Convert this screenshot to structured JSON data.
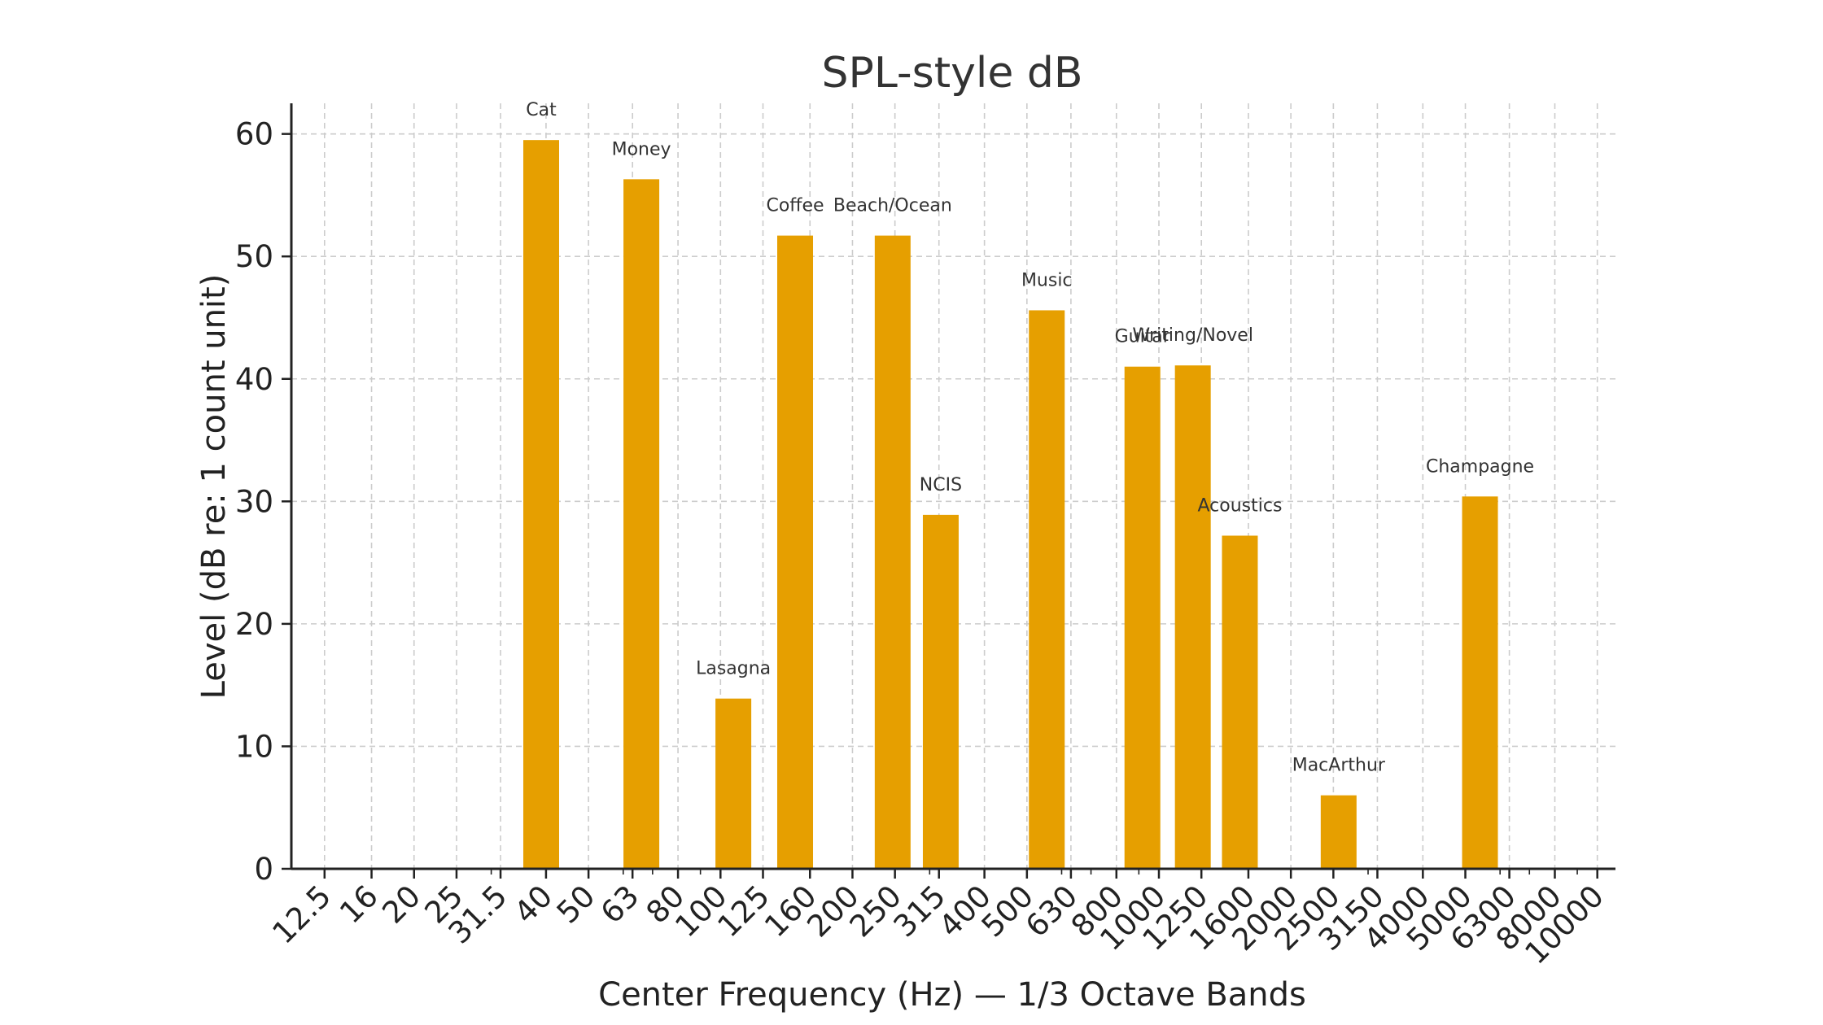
{
  "chart_data": {
    "type": "bar",
    "title": "SPL-style dB",
    "xlabel": "Center Frequency (Hz) — 1/3 Octave Bands",
    "ylabel": "Level (dB re: 1 count unit)",
    "ylim": [
      0,
      62.5
    ],
    "yticks": [
      0,
      10,
      20,
      30,
      40,
      50,
      60
    ],
    "x_scale": "log",
    "xlim": [
      10.5,
      11000
    ],
    "grid": true,
    "bar_color": "#E69F00",
    "xticks": [
      "12.5",
      "16",
      "20",
      "25",
      "31.5",
      "40",
      "50",
      "63",
      "80",
      "100",
      "125",
      "160",
      "200",
      "250",
      "315",
      "400",
      "500",
      "630",
      "800",
      "1000",
      "1250",
      "1600",
      "2000",
      "2500",
      "3150",
      "4000",
      "5000",
      "6300",
      "8000",
      "10000"
    ],
    "bars": [
      {
        "label": "Cat",
        "x": 39,
        "value": 59.5
      },
      {
        "label": "Money",
        "x": 66,
        "value": 56.3
      },
      {
        "label": "Lasagna",
        "x": 107,
        "value": 13.9
      },
      {
        "label": "Coffee",
        "x": 148,
        "value": 51.7
      },
      {
        "label": "Beach/Ocean",
        "x": 247,
        "value": 51.7
      },
      {
        "label": "NCIS",
        "x": 318,
        "value": 28.9
      },
      {
        "label": "Music",
        "x": 555,
        "value": 45.6
      },
      {
        "label": "Guitar",
        "x": 917,
        "value": 41.0
      },
      {
        "label": "Writing/Novel",
        "x": 1195,
        "value": 41.1
      },
      {
        "label": "Acoustics",
        "x": 1530,
        "value": 27.2
      },
      {
        "label": "MacArthur",
        "x": 2570,
        "value": 6.0
      },
      {
        "label": "Champagne",
        "x": 5400,
        "value": 30.4
      }
    ]
  }
}
